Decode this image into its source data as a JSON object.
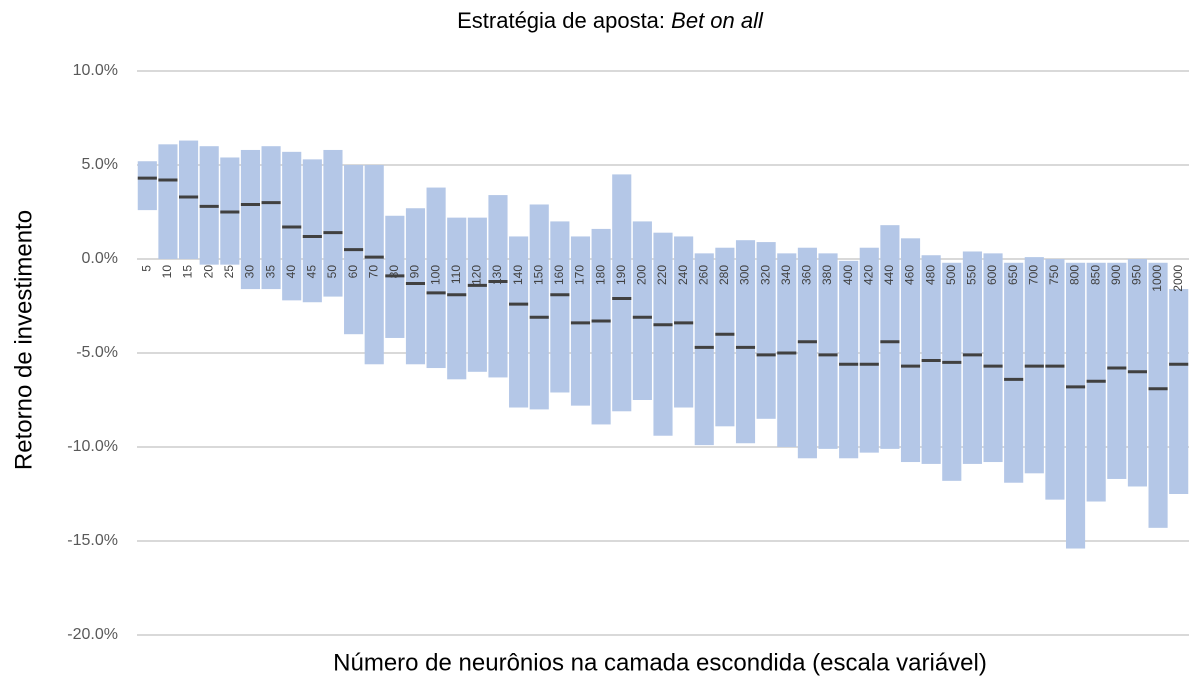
{
  "chart_data": {
    "type": "range_bar",
    "title": "Estratégia de aposta:",
    "title_emphasis": "Bet on all",
    "xlabel": "Número de neurônios na camada escondida (escala variável)",
    "ylabel": "Retorno de investimento",
    "categories": [
      "5",
      "10",
      "15",
      "20",
      "25",
      "30",
      "35",
      "40",
      "45",
      "50",
      "60",
      "70",
      "80",
      "90",
      "100",
      "110",
      "120",
      "130",
      "140",
      "150",
      "160",
      "170",
      "180",
      "190",
      "200",
      "220",
      "240",
      "260",
      "280",
      "300",
      "320",
      "340",
      "360",
      "380",
      "400",
      "420",
      "440",
      "460",
      "480",
      "500",
      "550",
      "600",
      "650",
      "700",
      "750",
      "800",
      "850",
      "900",
      "950",
      "1000",
      "2000"
    ],
    "high": [
      5.2,
      6.1,
      6.3,
      6.0,
      5.4,
      5.8,
      6.0,
      5.7,
      5.3,
      5.8,
      5.0,
      5.0,
      2.3,
      2.7,
      3.8,
      2.2,
      2.2,
      3.4,
      1.2,
      2.9,
      2.0,
      1.2,
      1.6,
      4.5,
      2.0,
      1.4,
      1.2,
      0.3,
      0.6,
      1.0,
      0.9,
      0.3,
      0.6,
      0.3,
      -0.1,
      0.6,
      1.8,
      1.1,
      0.2,
      -0.2,
      0.4,
      0.3,
      -0.2,
      0.1,
      0.0,
      -0.2,
      -0.2,
      -0.2,
      0.0,
      -0.2,
      -1.6
    ],
    "low": [
      2.6,
      0.0,
      0.0,
      -0.3,
      -0.3,
      -1.6,
      -1.6,
      -2.2,
      -2.3,
      -2.0,
      -4.0,
      -5.6,
      -4.2,
      -5.6,
      -5.8,
      -6.4,
      -6.0,
      -6.3,
      -7.9,
      -8.0,
      -7.1,
      -7.8,
      -8.8,
      -8.1,
      -7.5,
      -9.4,
      -7.9,
      -9.9,
      -8.9,
      -9.8,
      -8.5,
      -10.0,
      -10.6,
      -10.1,
      -10.6,
      -10.3,
      -10.1,
      -10.8,
      -10.9,
      -11.8,
      -10.9,
      -10.8,
      -11.9,
      -11.4,
      -12.8,
      -15.4,
      -12.9,
      -11.7,
      -12.1,
      -14.3,
      -12.5
    ],
    "mean": [
      4.3,
      4.2,
      3.3,
      2.8,
      2.5,
      2.9,
      3.0,
      1.7,
      1.2,
      1.4,
      0.5,
      0.1,
      -0.9,
      -1.3,
      -1.8,
      -1.9,
      -1.4,
      -1.2,
      -2.4,
      -3.1,
      -1.9,
      -3.4,
      -3.3,
      -2.1,
      -3.1,
      -3.5,
      -3.4,
      -4.7,
      -4.0,
      -4.7,
      -5.1,
      -5.0,
      -4.4,
      -5.1,
      -5.6,
      -5.6,
      -4.4,
      -5.7,
      -5.4,
      -5.5,
      -5.1,
      -5.7,
      -6.4,
      -5.7,
      -5.7,
      -6.8,
      -6.5,
      -5.8,
      -6.0,
      -6.9,
      -5.6
    ],
    "bar_color": "#b4c7e7",
    "mean_color": "#404040",
    "ylim": [
      -20,
      10
    ],
    "yticks": [
      {
        "value": -20,
        "label": "-20.0%"
      },
      {
        "value": -15,
        "label": "-15.0%"
      },
      {
        "value": -10,
        "label": "-10.0%"
      },
      {
        "value": -5,
        "label": "-5.0%"
      },
      {
        "value": 0,
        "label": "0.0%"
      },
      {
        "value": 5,
        "label": "5.0%"
      },
      {
        "value": 10,
        "label": "10.0%"
      }
    ],
    "grid": true
  }
}
